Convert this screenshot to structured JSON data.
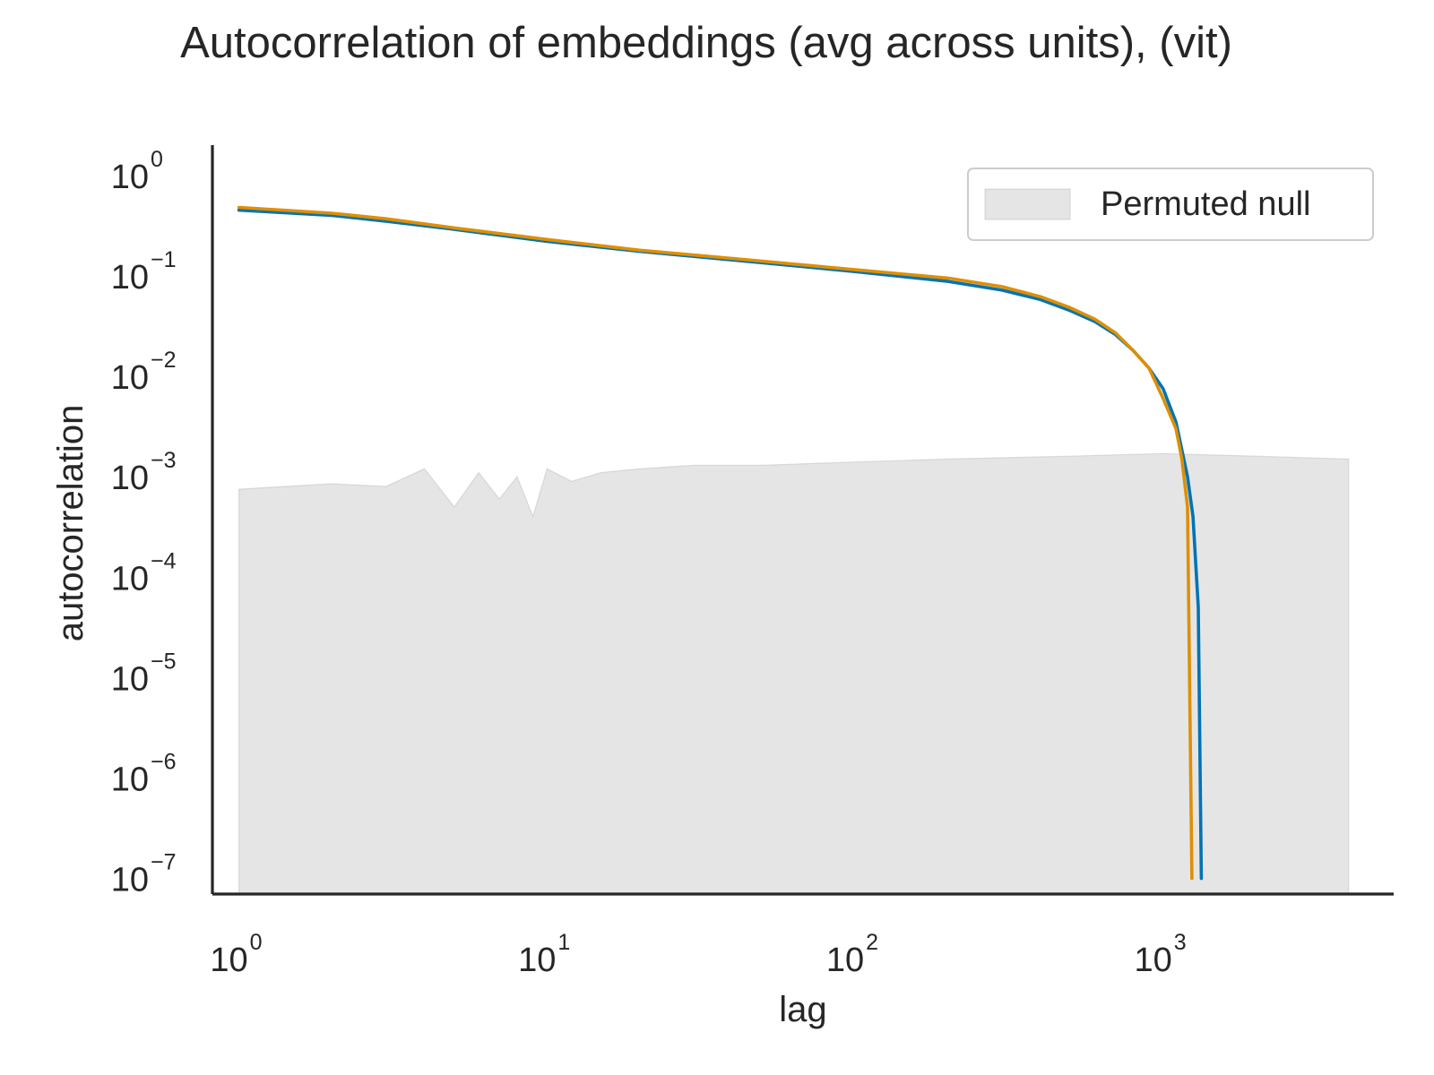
{
  "chart_data": {
    "type": "line",
    "title": "Autocorrelation of embeddings (avg across units), (vit)",
    "xlabel": "lag",
    "ylabel": "autocorrelation",
    "xscale": "log",
    "yscale": "log",
    "xlim": [
      0.82,
      5600
    ],
    "ylim": [
      7e-08,
      2.0
    ],
    "x_ticks": [
      {
        "base": "10",
        "exp": "0",
        "value": 1
      },
      {
        "base": "10",
        "exp": "1",
        "value": 10
      },
      {
        "base": "10",
        "exp": "2",
        "value": 100
      },
      {
        "base": "10",
        "exp": "3",
        "value": 1000
      }
    ],
    "y_ticks": [
      {
        "base": "10",
        "exp": "0",
        "value": 1
      },
      {
        "base": "10",
        "exp": "−1",
        "value": 0.1
      },
      {
        "base": "10",
        "exp": "−2",
        "value": 0.01
      },
      {
        "base": "10",
        "exp": "−3",
        "value": 0.001
      },
      {
        "base": "10",
        "exp": "−4",
        "value": 0.0001
      },
      {
        "base": "10",
        "exp": "−5",
        "value": 1e-05
      },
      {
        "base": "10",
        "exp": "−6",
        "value": 1e-06
      },
      {
        "base": "10",
        "exp": "−7",
        "value": 1e-07
      }
    ],
    "grid": false,
    "legend": {
      "position": "top-right",
      "entries": [
        "Permuted null"
      ]
    },
    "series": [
      {
        "color": "#0173b2",
        "x": [
          1,
          2,
          3,
          5,
          10,
          20,
          50,
          100,
          200,
          300,
          400,
          500,
          600,
          700,
          800,
          900,
          1000,
          1100,
          1200,
          1250,
          1300,
          1330
        ],
        "y": [
          0.45,
          0.4,
          0.35,
          0.29,
          0.22,
          0.175,
          0.135,
          0.11,
          0.088,
          0.072,
          0.058,
          0.045,
          0.035,
          0.026,
          0.018,
          0.012,
          0.0075,
          0.0035,
          0.001,
          0.0004,
          5e-05,
          1e-07
        ]
      },
      {
        "color": "#de8f05",
        "x": [
          1,
          2,
          3,
          5,
          10,
          20,
          50,
          100,
          200,
          300,
          400,
          500,
          600,
          700,
          800,
          900,
          1000,
          1100,
          1150,
          1200,
          1240
        ],
        "y": [
          0.48,
          0.42,
          0.37,
          0.3,
          0.23,
          0.18,
          0.14,
          0.115,
          0.095,
          0.078,
          0.062,
          0.048,
          0.037,
          0.027,
          0.018,
          0.012,
          0.006,
          0.003,
          0.0015,
          0.0005,
          1e-07
        ]
      }
    ],
    "null_band": {
      "name": "Permuted null",
      "color": "#a9a9a9",
      "x": [
        1,
        2,
        3,
        4,
        5,
        6,
        7,
        8,
        9,
        10,
        12,
        15,
        20,
        30,
        50,
        100,
        200,
        500,
        1000,
        2000,
        4000
      ],
      "upper": [
        0.00075,
        0.00085,
        0.0008,
        0.0012,
        0.0005,
        0.0011,
        0.0006,
        0.001,
        0.0004,
        0.0012,
        0.0009,
        0.0011,
        0.0012,
        0.0013,
        0.0013,
        0.0014,
        0.0015,
        0.0016,
        0.0017,
        0.0016,
        0.0015
      ]
    }
  }
}
